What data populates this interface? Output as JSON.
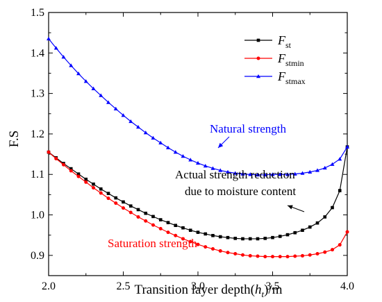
{
  "chart_data": {
    "type": "line",
    "xlabel": {
      "pre": "Transition layer depth(",
      "var": "h",
      "sub": "t",
      "post": ")/m"
    },
    "ylabel": "F.S",
    "xlim": [
      2.0,
      4.0
    ],
    "ylim": [
      0.85,
      1.5
    ],
    "xticks": [
      "2.0",
      "2.5",
      "3.0",
      "3.5",
      "4.0"
    ],
    "yticks": [
      "0.9",
      "1.0",
      "1.1",
      "1.2",
      "1.3",
      "1.4",
      "1.5"
    ],
    "grid": false,
    "legend_position": "top-right",
    "x": [
      2.0,
      2.05,
      2.1,
      2.15,
      2.2,
      2.25,
      2.3,
      2.35,
      2.4,
      2.45,
      2.5,
      2.55,
      2.6,
      2.65,
      2.7,
      2.75,
      2.8,
      2.85,
      2.9,
      2.95,
      3.0,
      3.05,
      3.1,
      3.15,
      3.2,
      3.25,
      3.3,
      3.35,
      3.4,
      3.45,
      3.5,
      3.55,
      3.6,
      3.65,
      3.7,
      3.75,
      3.8,
      3.85,
      3.9,
      3.95,
      4.0
    ],
    "series": [
      {
        "name": "st",
        "color": "#000000",
        "marker": "square",
        "values": [
          1.155,
          1.141,
          1.127,
          1.114,
          1.101,
          1.088,
          1.076,
          1.064,
          1.053,
          1.042,
          1.032,
          1.022,
          1.013,
          1.004,
          0.996,
          0.988,
          0.981,
          0.974,
          0.968,
          0.962,
          0.957,
          0.953,
          0.949,
          0.946,
          0.944,
          0.942,
          0.941,
          0.941,
          0.941,
          0.942,
          0.944,
          0.947,
          0.951,
          0.956,
          0.962,
          0.97,
          0.98,
          0.995,
          1.018,
          1.06,
          1.168
        ]
      },
      {
        "name": "stmin",
        "color": "#ff0000",
        "marker": "circle",
        "values": [
          1.155,
          1.139,
          1.124,
          1.109,
          1.095,
          1.081,
          1.067,
          1.054,
          1.041,
          1.029,
          1.017,
          1.006,
          0.995,
          0.985,
          0.975,
          0.966,
          0.957,
          0.949,
          0.941,
          0.934,
          0.927,
          0.921,
          0.916,
          0.911,
          0.907,
          0.904,
          0.901,
          0.899,
          0.898,
          0.897,
          0.897,
          0.897,
          0.897,
          0.898,
          0.899,
          0.901,
          0.904,
          0.908,
          0.914,
          0.926,
          0.958
        ]
      },
      {
        "name": "stmax",
        "color": "#0000ff",
        "marker": "triangle",
        "values": [
          1.435,
          1.412,
          1.39,
          1.369,
          1.349,
          1.33,
          1.312,
          1.295,
          1.278,
          1.262,
          1.246,
          1.231,
          1.217,
          1.203,
          1.19,
          1.178,
          1.166,
          1.155,
          1.145,
          1.136,
          1.128,
          1.121,
          1.115,
          1.11,
          1.106,
          1.103,
          1.101,
          1.1,
          1.099,
          1.099,
          1.1,
          1.1,
          1.1,
          1.101,
          1.103,
          1.106,
          1.11,
          1.116,
          1.125,
          1.138,
          1.168
        ]
      }
    ],
    "legend": [
      {
        "base": "F",
        "sub": "st"
      },
      {
        "base": "F",
        "sub": "stmin"
      },
      {
        "base": "F",
        "sub": "stmax"
      }
    ],
    "annotations": [
      {
        "id": "natural",
        "text": "Natural strength",
        "color": "#0000ff"
      },
      {
        "id": "actual-1",
        "text": "Actual strength reduction",
        "color": "#000000"
      },
      {
        "id": "actual-2",
        "text": "due to moisture content",
        "color": "#000000"
      },
      {
        "id": "saturation",
        "text": "Saturation strength",
        "color": "#ff0000"
      }
    ]
  }
}
